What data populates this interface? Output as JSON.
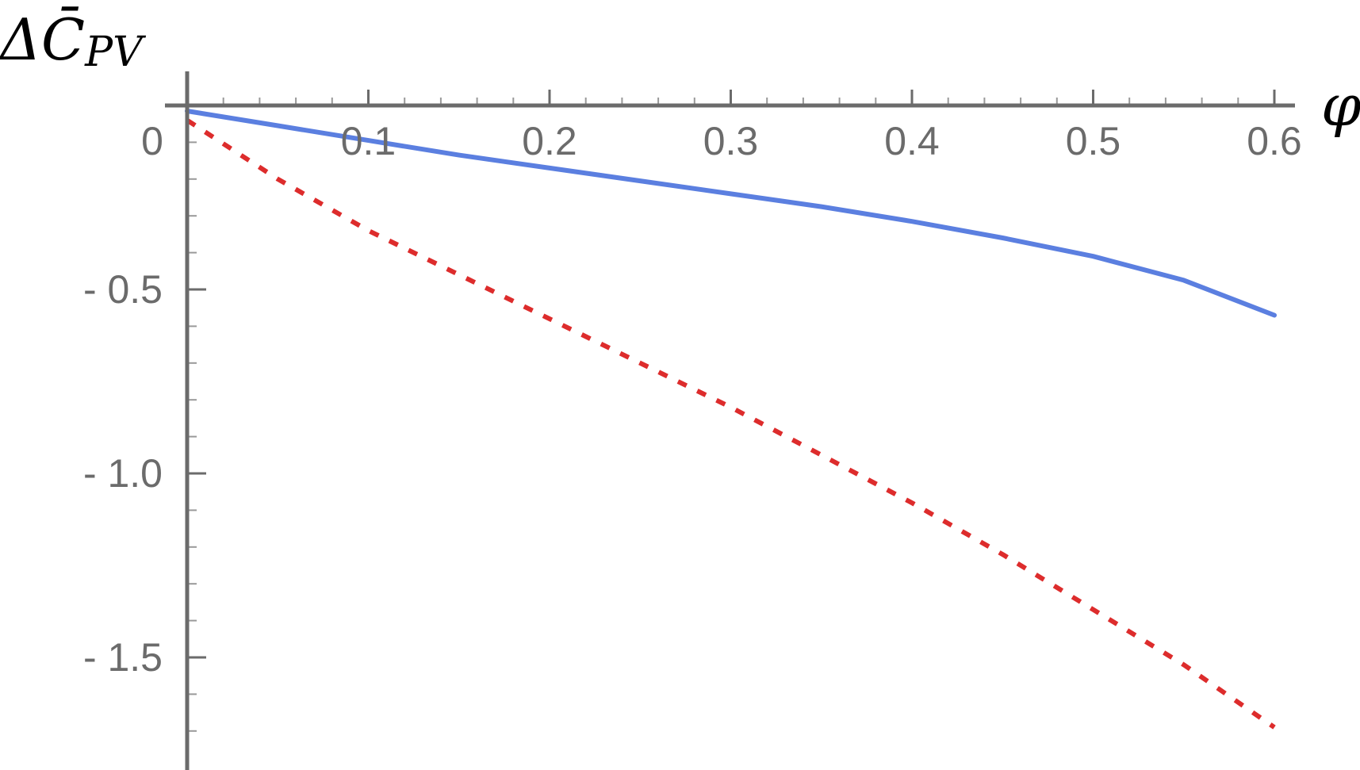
{
  "chart_data": {
    "type": "line",
    "xlabel": "φ",
    "ylabel": {
      "base": "ΔC̄",
      "subscript": "PV"
    },
    "xlim": [
      0,
      0.6
    ],
    "ylim": [
      -1.72,
      0.03
    ],
    "x_ticks": [
      {
        "value": 0,
        "label": "0"
      },
      {
        "value": 0.1,
        "label": "0.1"
      },
      {
        "value": 0.2,
        "label": "0.2"
      },
      {
        "value": 0.3,
        "label": "0.3"
      },
      {
        "value": 0.4,
        "label": "0.4"
      },
      {
        "value": 0.5,
        "label": "0.5"
      },
      {
        "value": 0.6,
        "label": "0.6"
      }
    ],
    "y_ticks": [
      {
        "value": -0.5,
        "label": "- 0.5"
      },
      {
        "value": -1.0,
        "label": "- 1.0"
      },
      {
        "value": -1.5,
        "label": "- 1.5"
      }
    ],
    "grid": false,
    "series": [
      {
        "style": "solid",
        "color": "#5b7fe0",
        "x": [
          0,
          0.05,
          0.1,
          0.15,
          0.2,
          0.25,
          0.3,
          0.35,
          0.4,
          0.45,
          0.5,
          0.55,
          0.6
        ],
        "y": [
          -0.015,
          -0.055,
          -0.095,
          -0.135,
          -0.17,
          -0.205,
          -0.24,
          -0.275,
          -0.315,
          -0.36,
          -0.41,
          -0.475,
          -0.57
        ]
      },
      {
        "style": "dotted",
        "color": "#dd2c2c",
        "x": [
          0,
          0.05,
          0.1,
          0.15,
          0.2,
          0.25,
          0.3,
          0.35,
          0.4,
          0.45,
          0.5,
          0.55,
          0.6
        ],
        "y": [
          -0.04,
          -0.2,
          -0.34,
          -0.46,
          -0.58,
          -0.7,
          -0.82,
          -0.95,
          -1.08,
          -1.22,
          -1.37,
          -1.52,
          -1.69
        ]
      }
    ]
  }
}
